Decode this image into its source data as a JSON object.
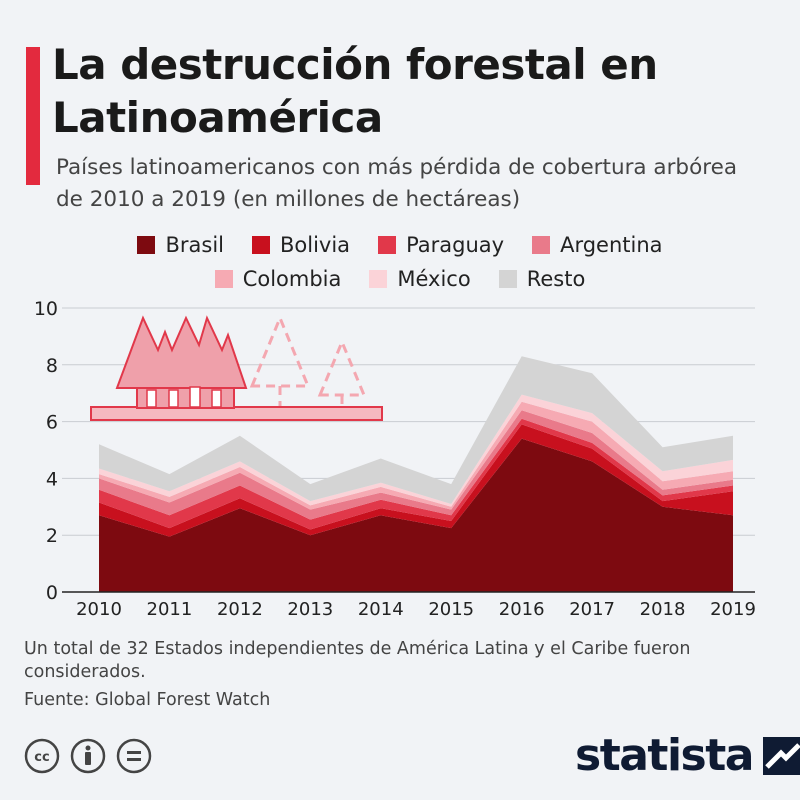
{
  "title": "La destrucción forestal en Latinoamérica",
  "subtitle": "Países latinoamericanos con más pérdida de cobertura arbórea de 2010 a 2019 (en millones de hectáreas)",
  "footnote": "Un total de 32 Estados independientes de América Latina y el Caribe fueron considerados.",
  "source": "Fuente: Global Forest Watch",
  "brand": "statista",
  "colors": {
    "accent": "#e32a3e",
    "Brasil": "#7d0a10",
    "Bolivia": "#c8101e",
    "Paraguay": "#e1384a",
    "Argentina": "#e97a8a",
    "Colombia": "#f6aab3",
    "México": "#fbd3d8",
    "Resto": "#d4d4d4"
  },
  "chart_data": {
    "type": "area",
    "stacked": true,
    "x": [
      "2010",
      "2011",
      "2012",
      "2013",
      "2014",
      "2015",
      "2016",
      "2017",
      "2018",
      "2019"
    ],
    "ylim": [
      0,
      10
    ],
    "yticks": [
      "0",
      "2",
      "4",
      "6",
      "8",
      "10"
    ],
    "grid": true,
    "legend_position": "top",
    "series": [
      {
        "name": "Brasil",
        "values": [
          2.7,
          1.95,
          2.95,
          2.0,
          2.7,
          2.25,
          5.4,
          4.6,
          3.0,
          2.7
        ]
      },
      {
        "name": "Bolivia",
        "values": [
          0.45,
          0.3,
          0.35,
          0.2,
          0.25,
          0.25,
          0.5,
          0.45,
          0.2,
          0.85
        ]
      },
      {
        "name": "Paraguay",
        "values": [
          0.45,
          0.45,
          0.45,
          0.35,
          0.3,
          0.2,
          0.2,
          0.2,
          0.2,
          0.2
        ]
      },
      {
        "name": "Argentina",
        "values": [
          0.4,
          0.45,
          0.45,
          0.35,
          0.25,
          0.2,
          0.3,
          0.35,
          0.2,
          0.2
        ]
      },
      {
        "name": "Colombia",
        "values": [
          0.15,
          0.2,
          0.2,
          0.15,
          0.2,
          0.1,
          0.3,
          0.4,
          0.3,
          0.3
        ]
      },
      {
        "name": "México",
        "values": [
          0.2,
          0.2,
          0.2,
          0.15,
          0.15,
          0.1,
          0.25,
          0.3,
          0.35,
          0.4
        ]
      },
      {
        "name": "Resto",
        "values": [
          0.85,
          0.6,
          0.9,
          0.6,
          0.85,
          0.7,
          1.35,
          1.4,
          0.85,
          0.85
        ]
      }
    ]
  }
}
